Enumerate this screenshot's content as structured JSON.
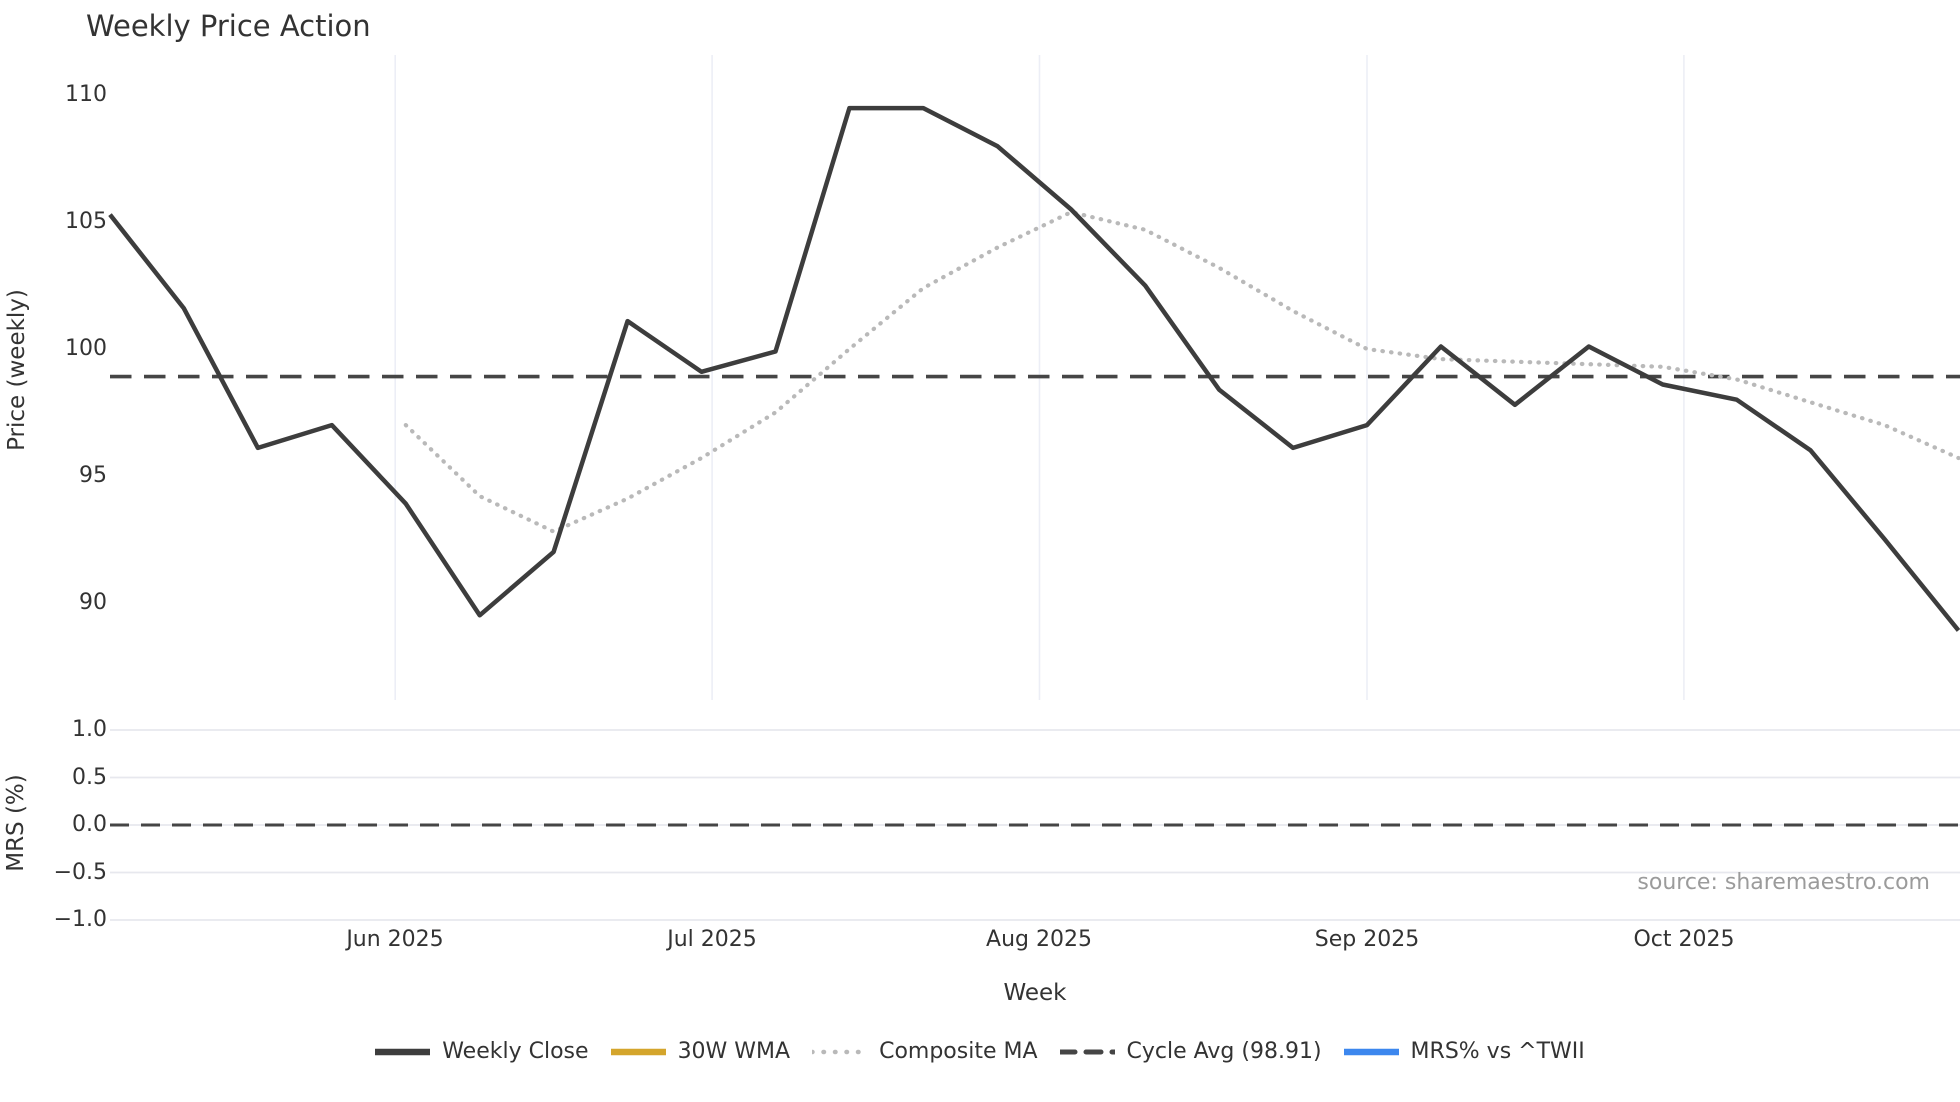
{
  "title": "Weekly Price Action",
  "source_text": "source: sharemaestro.com",
  "x_axis": {
    "label": "Week",
    "ticks": [
      {
        "label": "Jun 2025",
        "pos": 3.857
      },
      {
        "label": "Jul 2025",
        "pos": 8.143
      },
      {
        "label": "Aug 2025",
        "pos": 12.571
      },
      {
        "label": "Sep 2025",
        "pos": 17.0
      },
      {
        "label": "Oct 2025",
        "pos": 21.286
      }
    ]
  },
  "price_panel": {
    "ylabel": "Price (weekly)",
    "y_ticks": [
      {
        "label": "110",
        "value": 110
      },
      {
        "label": "105",
        "value": 105
      },
      {
        "label": "100",
        "value": 100
      },
      {
        "label": "95",
        "value": 95
      },
      {
        "label": "90",
        "value": 90
      }
    ],
    "cycle_avg": 98.91
  },
  "mrs_panel": {
    "ylabel": "MRS (%)",
    "y_ticks": [
      {
        "label": "1.0",
        "value": 1.0
      },
      {
        "label": "0.5",
        "value": 0.5
      },
      {
        "label": "0.0",
        "value": 0.0
      },
      {
        "label": "−0.5",
        "value": -0.5
      },
      {
        "label": "−1.0",
        "value": -1.0
      }
    ],
    "zero_line": 0.0
  },
  "legend": [
    {
      "label": "Weekly Close",
      "style": "solid",
      "color": "#3d3d3d"
    },
    {
      "label": "30W WMA",
      "style": "solid",
      "color": "#d4a52c"
    },
    {
      "label": "Composite MA",
      "style": "dotted",
      "color": "#b9b9b9"
    },
    {
      "label": "Cycle Avg (98.91)",
      "style": "dashed",
      "color": "#454545"
    },
    {
      "label": "MRS% vs ^TWII",
      "style": "solid",
      "color": "#3c87ee"
    }
  ],
  "chart_data": [
    {
      "type": "line",
      "title": "Weekly Price Action",
      "xlabel": "Week",
      "ylabel": "Price (weekly)",
      "ylim": [
        86.2,
        111.6
      ],
      "grid": "vertical-months-only",
      "x_unit": "weekly points, Mondays May 5 2025 through Oct 27 2025, evenly spaced",
      "x_ticks": [
        {
          "label": "Jun 2025",
          "pos": 3.857
        },
        {
          "label": "Jul 2025",
          "pos": 8.143
        },
        {
          "label": "Aug 2025",
          "pos": 12.571
        },
        {
          "label": "Sep 2025",
          "pos": 17.0
        },
        {
          "label": "Oct 2025",
          "pos": 21.286
        }
      ],
      "series": [
        {
          "name": "Weekly Close",
          "style": "solid",
          "color": "#3d3d3d",
          "start_week": 0,
          "values": [
            105.3,
            101.6,
            96.1,
            97.0,
            93.9,
            89.5,
            92.0,
            101.1,
            99.1,
            99.9,
            109.5,
            109.5,
            108.0,
            105.5,
            102.5,
            98.4,
            96.1,
            97.0,
            100.1,
            97.8,
            100.1,
            98.6,
            98.0,
            96.0,
            92.5,
            88.9
          ]
        },
        {
          "name": "30W WMA",
          "style": "solid",
          "color": "#d4a52c",
          "start_week": 0,
          "values": []
        },
        {
          "name": "Composite MA",
          "style": "dotted",
          "color": "#b9b9b9",
          "start_week": 4,
          "values": [
            97.0,
            94.2,
            92.8,
            94.1,
            95.7,
            97.5,
            100.0,
            102.4,
            104.0,
            105.4,
            104.7,
            103.2,
            101.5,
            100.0,
            99.6,
            99.5,
            99.4,
            99.3,
            98.8,
            97.9,
            97.0,
            95.7
          ]
        },
        {
          "name": "Cycle Avg (98.91)",
          "style": "dashed",
          "color": "#454545",
          "constant": 98.91
        }
      ],
      "legend_position": "lower center"
    },
    {
      "type": "line",
      "xlabel": "Week",
      "ylabel": "MRS (%)",
      "ylim": [
        -1.05,
        1.05
      ],
      "grid": "horizontal-only",
      "y_ticks": [
        1.0,
        0.5,
        0.0,
        -0.5,
        -1.0
      ],
      "series": [
        {
          "name": "MRS% vs ^TWII",
          "style": "solid",
          "color": "#3c87ee",
          "values": []
        },
        {
          "name": "zero reference",
          "style": "dashed",
          "color": "#454545",
          "constant": 0.0
        }
      ]
    }
  ]
}
